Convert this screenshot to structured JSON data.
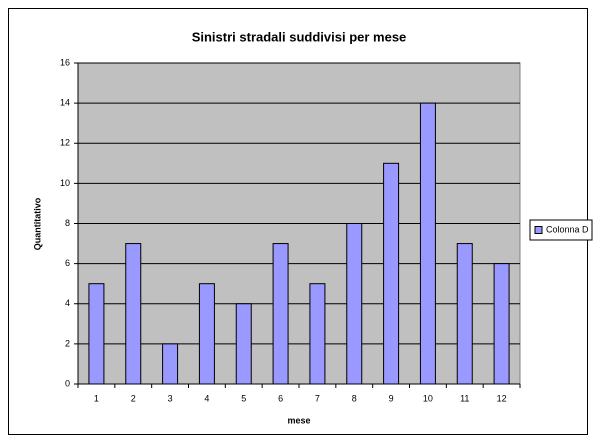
{
  "chart_data": {
    "type": "bar",
    "title": "Sinistri stradali suddivisi per mese",
    "x_label": "mese",
    "y_label": "Quantitativo",
    "categories": [
      "1",
      "2",
      "3",
      "4",
      "5",
      "6",
      "7",
      "8",
      "9",
      "10",
      "11",
      "12"
    ],
    "series": [
      {
        "name": "Colonna D",
        "color": "#9999ff",
        "values": [
          5,
          7,
          2,
          5,
          4,
          7,
          5,
          8,
          11,
          14,
          7,
          6
        ]
      }
    ],
    "ylim": [
      0,
      16
    ],
    "yticks": [
      0,
      2,
      4,
      6,
      8,
      10,
      12,
      14,
      16
    ],
    "grid": true,
    "legend": "right"
  }
}
